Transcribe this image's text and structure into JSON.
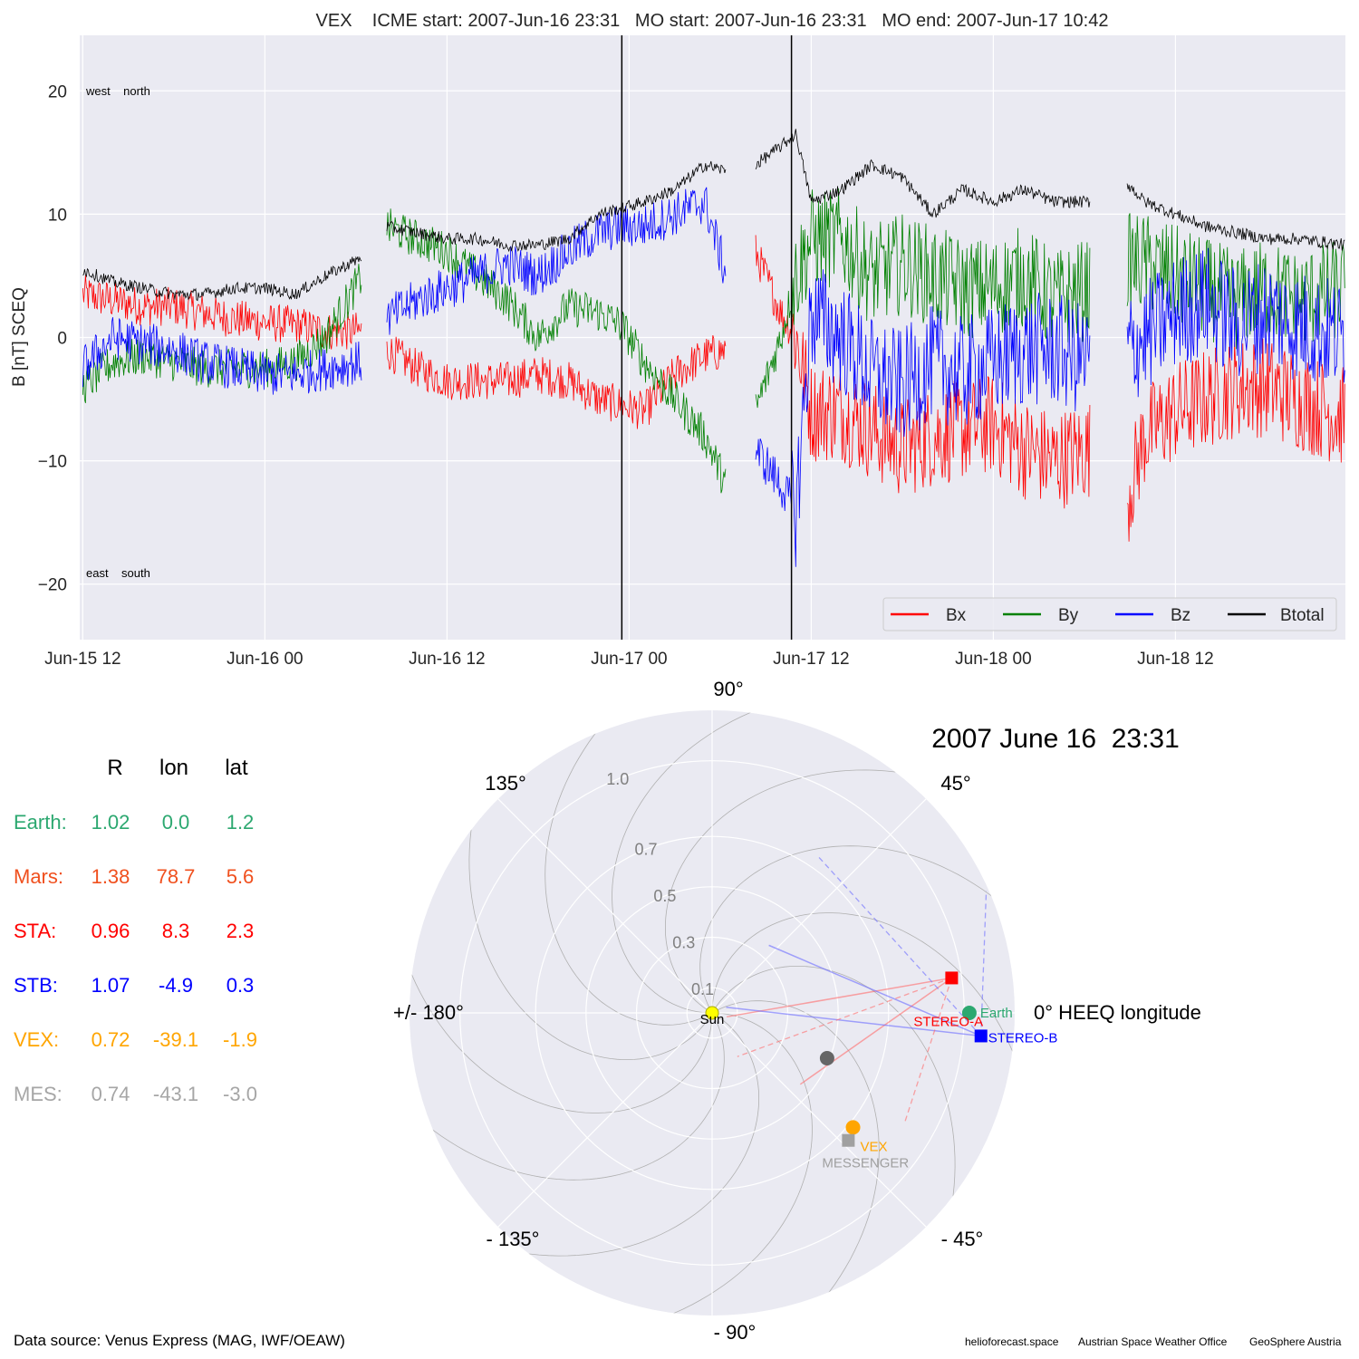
{
  "chart_data": [
    {
      "type": "line",
      "title": "VEX    ICME start: 2007-Jun-16 23:31   MO start: 2007-Jun-16 23:31   MO end: 2007-Jun-17 10:42",
      "ylabel": "B [nT] SCEQ",
      "xlabel": "",
      "ylim": [
        -24.5,
        24.5
      ],
      "yticks": [
        -20,
        -10,
        0,
        10,
        20
      ],
      "ytick_labels": [
        "−20",
        "−10",
        "0",
        "10",
        "20"
      ],
      "xlim_hours": [
        -0.2,
        83.2
      ],
      "xtick_labels": [
        "Jun-15 12",
        "Jun-16 00",
        "Jun-16 12",
        "Jun-17 00",
        "Jun-17 12",
        "Jun-18 00",
        "Jun-18 12"
      ],
      "xtick_hours": [
        0,
        12,
        24,
        36,
        48,
        60,
        72
      ],
      "grid": true,
      "legend_position": "bottom-right",
      "corner_labels": {
        "top": "west    north",
        "bottom": "east    south"
      },
      "vertical_lines": [
        {
          "time": "2007-Jun-16 23:31",
          "hour": 35.52
        },
        {
          "time": "2007-Jun-17 10:42",
          "hour": 46.7
        }
      ],
      "data_gaps_hours": [
        [
          18.4,
          20.0
        ],
        [
          42.4,
          44.3
        ],
        [
          66.4,
          68.8
        ]
      ],
      "series": [
        {
          "name": "Bx",
          "color": "#ff0000",
          "x": [
            0,
            2,
            4,
            6,
            8,
            10,
            12,
            14,
            16,
            18.4,
            20,
            22,
            24,
            26,
            28,
            30,
            32,
            34,
            35.5,
            37,
            39,
            41,
            42.4,
            44.3,
            46,
            47,
            48,
            50,
            52,
            54,
            56,
            58,
            60,
            62,
            64,
            66.4,
            68.8,
            70,
            72,
            74,
            76,
            78,
            80,
            83.2
          ],
          "y": [
            3.5,
            3,
            2.5,
            2.5,
            2,
            1.5,
            1.2,
            1.0,
            0.5,
            0.5,
            -1,
            -2.5,
            -3.5,
            -3.5,
            -3.5,
            -3,
            -3.5,
            -5,
            -5.5,
            -6,
            -3,
            -1.5,
            -1,
            7,
            2,
            0,
            -6,
            -6,
            -7.5,
            -9,
            -8,
            -7.5,
            -7,
            -9,
            -10,
            -9,
            -13,
            -8,
            -6,
            -5,
            -4,
            -4,
            -5,
            -6.5
          ]
        },
        {
          "name": "By",
          "color": "#008000",
          "x": [
            0,
            2,
            4,
            6,
            8,
            10,
            12,
            14,
            16,
            18.4,
            20,
            22,
            24,
            26,
            28,
            30,
            32,
            34,
            35.5,
            37,
            39,
            41,
            42.4,
            44.3,
            46,
            47,
            48,
            50,
            52,
            54,
            56,
            58,
            60,
            62,
            64,
            66.4,
            68.8,
            70,
            72,
            74,
            76,
            78,
            80,
            83.2
          ],
          "y": [
            -4,
            -2,
            -1.5,
            -2,
            -2.5,
            -2.5,
            -2.5,
            -2,
            0,
            5,
            9,
            8,
            7,
            5,
            3,
            0,
            2.5,
            2,
            1,
            -2,
            -5,
            -8,
            -12,
            -6,
            0,
            5,
            8,
            8,
            5,
            6,
            5,
            4,
            4,
            5,
            3,
            4,
            6,
            6,
            5,
            4,
            3,
            4,
            3,
            4
          ]
        },
        {
          "name": "Bz",
          "color": "#0000ff",
          "x": [
            0,
            2,
            4,
            6,
            8,
            10,
            12,
            14,
            16,
            18.4,
            20,
            22,
            24,
            26,
            28,
            30,
            32,
            34,
            35.5,
            37,
            39,
            41,
            42.4,
            44.3,
            46,
            47,
            48,
            50,
            52,
            54,
            56,
            58,
            60,
            62,
            64,
            66.4,
            68.8,
            70,
            72,
            74,
            76,
            78,
            80,
            83.2
          ],
          "y": [
            -2.5,
            0,
            -0.5,
            -1,
            -2,
            -2.5,
            -3,
            -3,
            -2.5,
            -2,
            1.5,
            3,
            4,
            5,
            6,
            5,
            7,
            8.5,
            9,
            9,
            10,
            11,
            5,
            -9,
            -12,
            -14,
            2,
            0,
            -3,
            -4,
            -2,
            -3,
            -2,
            -1,
            -1,
            -2,
            -1,
            0,
            2,
            3,
            1,
            2,
            1,
            0
          ]
        },
        {
          "name": "Btotal",
          "color": "#000000",
          "x": [
            0,
            2,
            4,
            6,
            8,
            10,
            12,
            14,
            16,
            18.4,
            20,
            22,
            24,
            26,
            28,
            30,
            32,
            34,
            35.5,
            37,
            39,
            41,
            42.4,
            44.3,
            46,
            47,
            48,
            50,
            52,
            54,
            56,
            58,
            60,
            62,
            64,
            66.4,
            68.8,
            70,
            72,
            74,
            76,
            78,
            80,
            83.2
          ],
          "y": [
            5.5,
            4.5,
            4,
            3.5,
            3.5,
            4,
            4,
            3.5,
            5,
            6.5,
            9,
            8.5,
            8,
            8,
            7.5,
            7.5,
            8,
            10,
            10.5,
            11,
            12,
            14,
            13.5,
            14,
            15.5,
            16.5,
            11,
            12,
            14,
            13,
            10,
            12,
            11,
            12,
            11,
            11,
            12.5,
            11,
            10,
            9,
            8.5,
            8,
            8,
            7.5
          ]
        }
      ]
    },
    {
      "type": "scatter",
      "title": "2007 June 16  23:31",
      "projection": "polar",
      "angle_labels": [
        "90°",
        "45°",
        "0° HEEQ longitude",
        "- 45°",
        "- 90°",
        "- 135°",
        "+/- 180°",
        "135°"
      ],
      "angle_values_deg": [
        90,
        45,
        0,
        -45,
        -90,
        -135,
        180,
        135
      ],
      "radial_ticks": [
        0.1,
        0.3,
        0.5,
        0.7,
        1.0
      ],
      "radial_tick_labels": [
        "0.1",
        "0.3",
        "0.5",
        "0.7",
        "1.0"
      ],
      "rlim": [
        0,
        1.2
      ],
      "points": [
        {
          "name": "Sun",
          "r": 0.0,
          "lon": 0.0,
          "color": "#ffff00",
          "marker": "circle"
        },
        {
          "name": "Earth",
          "r": 1.02,
          "lon": 0.0,
          "color": "#2ca870",
          "marker": "circle"
        },
        {
          "name": "STEREO-A",
          "r": 0.96,
          "lon": 8.3,
          "color": "#ff0000",
          "marker": "square"
        },
        {
          "name": "STEREO-B",
          "r": 1.07,
          "lon": -4.9,
          "color": "#0000ff",
          "marker": "square"
        },
        {
          "name": "VEX",
          "r": 0.72,
          "lon": -39.1,
          "color": "#ffa500",
          "marker": "circle"
        },
        {
          "name": "MESSENGER",
          "r": 0.74,
          "lon": -43.1,
          "color": "#a0a0a0",
          "marker": "square"
        },
        {
          "name": "",
          "r": 0.49,
          "lon": -21.5,
          "color": "#666666",
          "marker": "circle"
        }
      ]
    }
  ],
  "position_table": {
    "headers": [
      "R",
      "lon",
      "lat"
    ],
    "rows": [
      {
        "label": "Earth:",
        "R": "1.02",
        "lon": "0.0",
        "lat": "1.2",
        "color": "#2ca870"
      },
      {
        "label": "Mars:",
        "R": "1.38",
        "lon": "78.7",
        "lat": "5.6",
        "color": "#f0501e"
      },
      {
        "label": "STA:",
        "R": "0.96",
        "lon": "8.3",
        "lat": "2.3",
        "color": "#ff0000"
      },
      {
        "label": "STB:",
        "R": "1.07",
        "lon": "-4.9",
        "lat": "0.3",
        "color": "#0000ff"
      },
      {
        "label": "VEX:",
        "R": "0.72",
        "lon": "-39.1",
        "lat": "-1.9",
        "color": "#ffa500"
      },
      {
        "label": "MES:",
        "R": "0.74",
        "lon": "-43.1",
        "lat": "-3.0",
        "color": "#a6a6a6"
      }
    ]
  },
  "footer": {
    "source": "Data source: Venus Express (MAG, IWF/OEAW)",
    "credits": [
      "helioforecast.space",
      "Austrian Space Weather Office",
      "GeoSphere Austria"
    ]
  }
}
